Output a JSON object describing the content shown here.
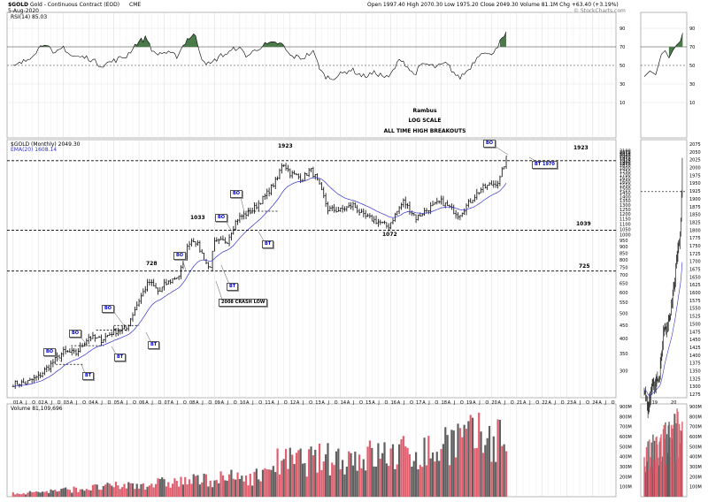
{
  "header": {
    "symbol": "$GOLD",
    "name": "Gold - Continuous Contract (EOD)",
    "exchange": "CME",
    "date": "5-Aug-2020",
    "quote": "Open 1997.40  High 2070.30  Low 1975.20  Close 2049.30  Volume 81.1M  Chg +63.40 (+3.19%)",
    "source": "© StockCharts.com"
  },
  "rsi_panel": {
    "legend": "RSI(14) 85.03",
    "levels": [
      "90",
      "70",
      "50",
      "30",
      "10"
    ]
  },
  "price_panel": {
    "legend_main": "$GOLD (Monthly) 2049.30",
    "legend_ema": "EMA(20) 1608.14",
    "right_axis": [
      "2100",
      "2075",
      "2050",
      "2025",
      "2000",
      "1975",
      "1950",
      "1925",
      "1900",
      "1875",
      "1850",
      "1800",
      "1750",
      "1700",
      "1650",
      "1600",
      "1550",
      "1500",
      "1450",
      "1400",
      "1350",
      "1300",
      "1250",
      "1200",
      "1150",
      "1100",
      "1050",
      "1000",
      "950",
      "900",
      "850",
      "800",
      "750",
      "700",
      "650",
      "600",
      "550",
      "500",
      "450",
      "400",
      "350",
      "300"
    ],
    "inset_axis": [
      "2075",
      "2050",
      "2025",
      "2000",
      "1975",
      "1950",
      "1925",
      "1900",
      "1875",
      "1850",
      "1825",
      "1800",
      "1775",
      "1750",
      "1725",
      "1700",
      "1675",
      "1650",
      "1625",
      "1600",
      "1575",
      "1550",
      "1525",
      "1500",
      "1475",
      "1450",
      "1425",
      "1400",
      "1375",
      "1350",
      "1325",
      "1300",
      "1275"
    ]
  },
  "volume_panel": {
    "legend": "Volume 81,109,696",
    "levels": [
      "900M",
      "800M",
      "700M",
      "600M",
      "500M",
      "400M",
      "300M",
      "200M",
      "100M"
    ]
  },
  "x_axis": {
    "years": [
      "01",
      "02",
      "03",
      "04",
      "05",
      "06",
      "07",
      "08",
      "09",
      "10",
      "11",
      "12",
      "13",
      "14",
      "15",
      "16",
      "17",
      "18",
      "19",
      "20",
      "21",
      "22",
      "23",
      "24"
    ],
    "months": [
      "A",
      "J",
      "O"
    ],
    "inset_years": [
      "19",
      "20"
    ]
  },
  "annotations": {
    "author": "Rambus",
    "scale": "LOG SCALE",
    "theme": "ALL TIME HIGH BREAKOUTS",
    "level_1923_left": "1923",
    "level_1923_right": "1923",
    "level_1039": "1039",
    "level_1033": "1033",
    "level_1072": "1072",
    "level_728": "728",
    "level_725": "725",
    "crash_low": "2008 CRASH LOW",
    "bt_1970": "BT 1970",
    "bo": "BO",
    "bt": "BT"
  },
  "colors": {
    "ema": "#3333cc",
    "rsi_fill": "#4a7a4a",
    "vol_up": "#e06070",
    "vol_down": "#606060",
    "box_text": "#0000cc"
  },
  "chart_data": {
    "type": "line",
    "title": "$GOLD (Monthly)",
    "scale": "log",
    "x": [
      "2000",
      "2001",
      "2002",
      "2003",
      "2004",
      "2005",
      "2006",
      "2007",
      "2008",
      "2009",
      "2010",
      "2011",
      "2012",
      "2013",
      "2014",
      "2015",
      "2016",
      "2017",
      "2018",
      "2019",
      "2020"
    ],
    "series": [
      {
        "name": "$GOLD",
        "values": [
          275,
          268,
          330,
          400,
          430,
          510,
          620,
          830,
          870,
          1100,
          1400,
          1560,
          1680,
          1200,
          1200,
          1060,
          1150,
          1300,
          1280,
          1520,
          2049
        ]
      },
      {
        "name": "EMA(20)",
        "values": [
          285,
          280,
          300,
          350,
          400,
          440,
          540,
          680,
          800,
          940,
          1180,
          1400,
          1600,
          1450,
          1280,
          1180,
          1200,
          1250,
          1270,
          1420,
          1608
        ]
      }
    ],
    "levels": [
      1923,
      1039,
      725
    ],
    "ylim": [
      260,
      2100
    ],
    "rsi": {
      "name": "RSI(14)",
      "value": 85.03,
      "ylim": [
        10,
        90
      ]
    },
    "volume": {
      "name": "Volume",
      "value": 81109696,
      "ylim": [
        0,
        900000000
      ]
    }
  }
}
